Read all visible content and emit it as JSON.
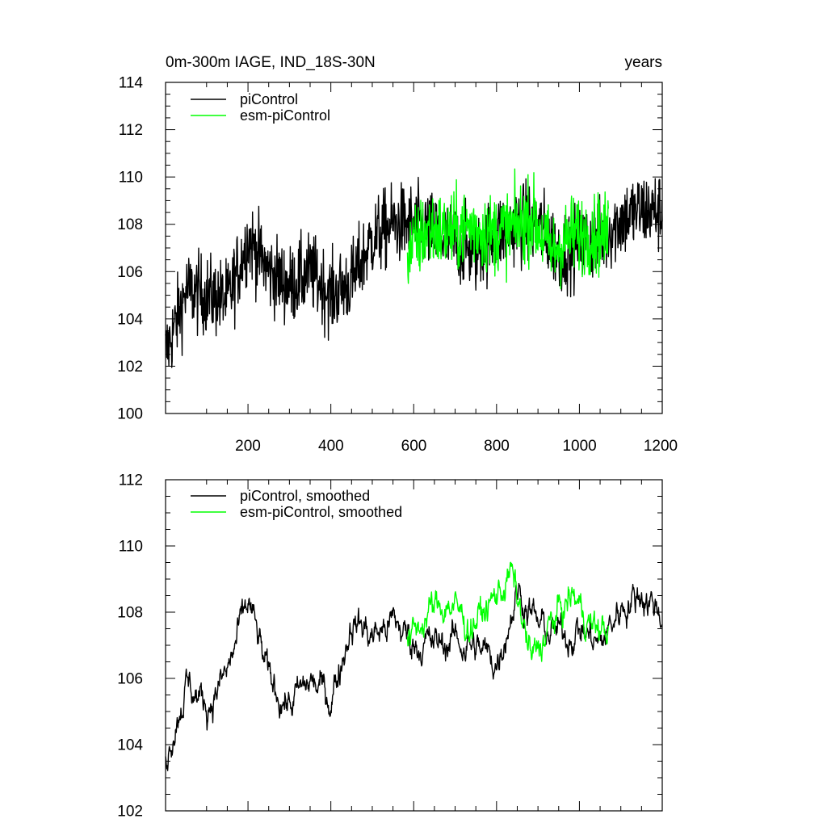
{
  "chart_data": [
    {
      "type": "line",
      "title_left": "0m-300m IAGE, IND_18S-30N",
      "title_right": "years",
      "xlabel": "",
      "ylabel": "",
      "xlim": [
        1,
        1200
      ],
      "ylim": [
        100,
        114
      ],
      "y_ticks": [
        "100",
        "102",
        "104",
        "106",
        "108",
        "110",
        "112",
        "114"
      ],
      "x_ticks": [
        "200",
        "400",
        "600",
        "800",
        "1000",
        "1200"
      ],
      "legend_position": "top-left",
      "series": [
        {
          "name": "piControl",
          "color": "#000000",
          "x_start": 1,
          "x_end": 1200,
          "approx_values_every_50_years": [
            102.5,
            105.2,
            105.0,
            104.8,
            107.4,
            106.0,
            105.4,
            106.0,
            105.0,
            105.6,
            107.4,
            108.0,
            108.0,
            107.6,
            107.2,
            106.8,
            107.6,
            108.0,
            108.0,
            106.8,
            107.2,
            107.4,
            108.2,
            108.6,
            108.5
          ]
        },
        {
          "name": "esm-piControl",
          "color": "#00ff00",
          "x_start": 585,
          "x_end": 1070,
          "approx_values_every_50_years": [
            106.8,
            107.8,
            107.6,
            107.9,
            107.6,
            107.8,
            108.3,
            106.8,
            107.6,
            107.6
          ]
        }
      ]
    },
    {
      "type": "line",
      "xlim": [
        1,
        1200
      ],
      "ylim": [
        102,
        112
      ],
      "y_ticks": [
        "102",
        "104",
        "106",
        "108",
        "110",
        "112"
      ],
      "legend_position": "top-left",
      "series": [
        {
          "name": "piControl, smoothed",
          "color": "#000000",
          "x_start": 1,
          "x_end": 1200,
          "approx_values_every_50_years": [
            103.8,
            105.8,
            105.2,
            106.2,
            108.3,
            105.9,
            105.2,
            105.9,
            105.4,
            107.8,
            107.3,
            107.7,
            107.1,
            107.0,
            107.2,
            106.9,
            106.5,
            108.7,
            107.6,
            107.3,
            107.5,
            107.0,
            108.2,
            108.6,
            108.0
          ]
        },
        {
          "name": "esm-piControl, smoothed",
          "color": "#00ff00",
          "x_start": 585,
          "x_end": 1070,
          "approx_values_every_50_years": [
            107.0,
            108.0,
            108.3,
            107.6,
            108.2,
            109.2,
            106.5,
            107.7,
            108.5,
            107.5
          ]
        }
      ]
    }
  ]
}
